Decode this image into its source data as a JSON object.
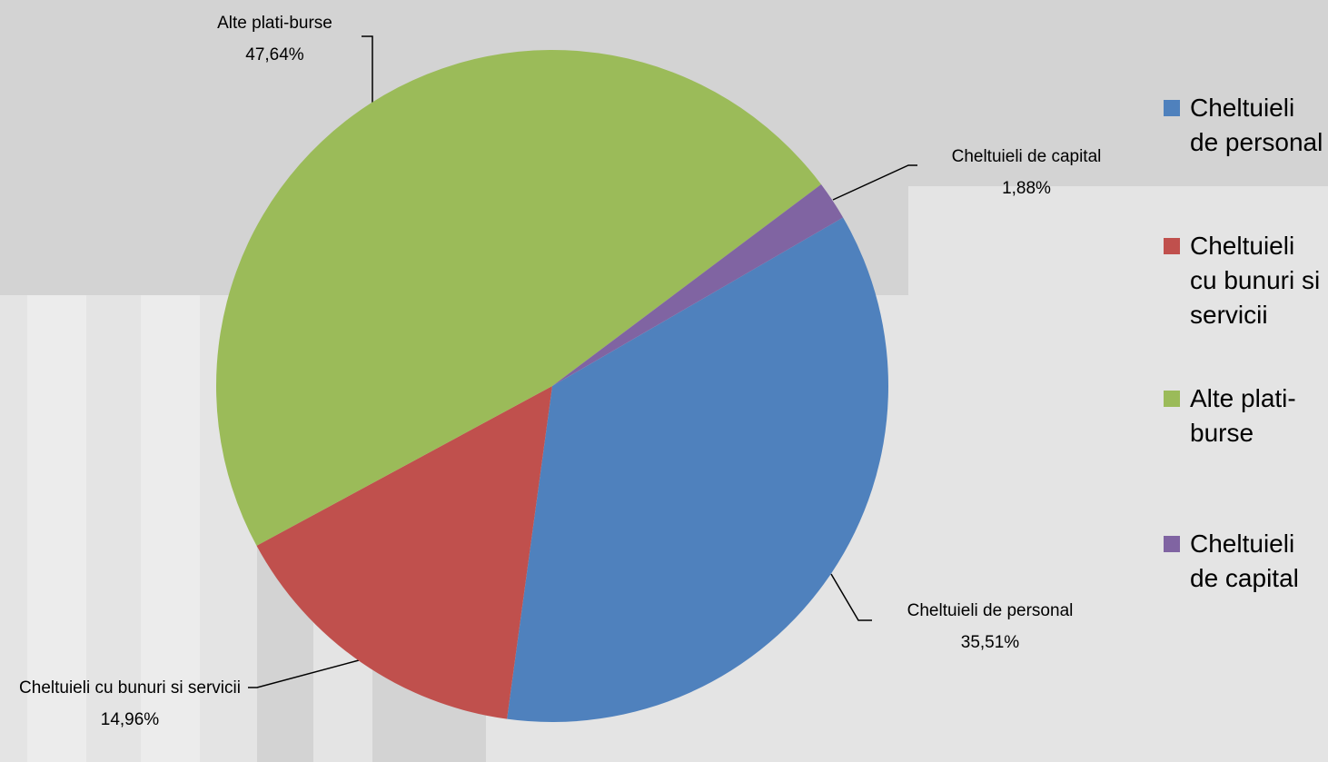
{
  "chart_data": {
    "type": "pie",
    "categories": [
      "Cheltuieli de personal",
      "Cheltuieli cu bunuri si servicii",
      "Alte plati-burse",
      "Cheltuieli de capital"
    ],
    "values": [
      35.51,
      14.96,
      47.64,
      1.88
    ],
    "value_labels": [
      "35,51%",
      "14,96%",
      "47,64%",
      "1,88%"
    ],
    "colors": [
      "#4f81bd",
      "#c0504d",
      "#9bbb59",
      "#8064a2"
    ],
    "legend": "right"
  }
}
